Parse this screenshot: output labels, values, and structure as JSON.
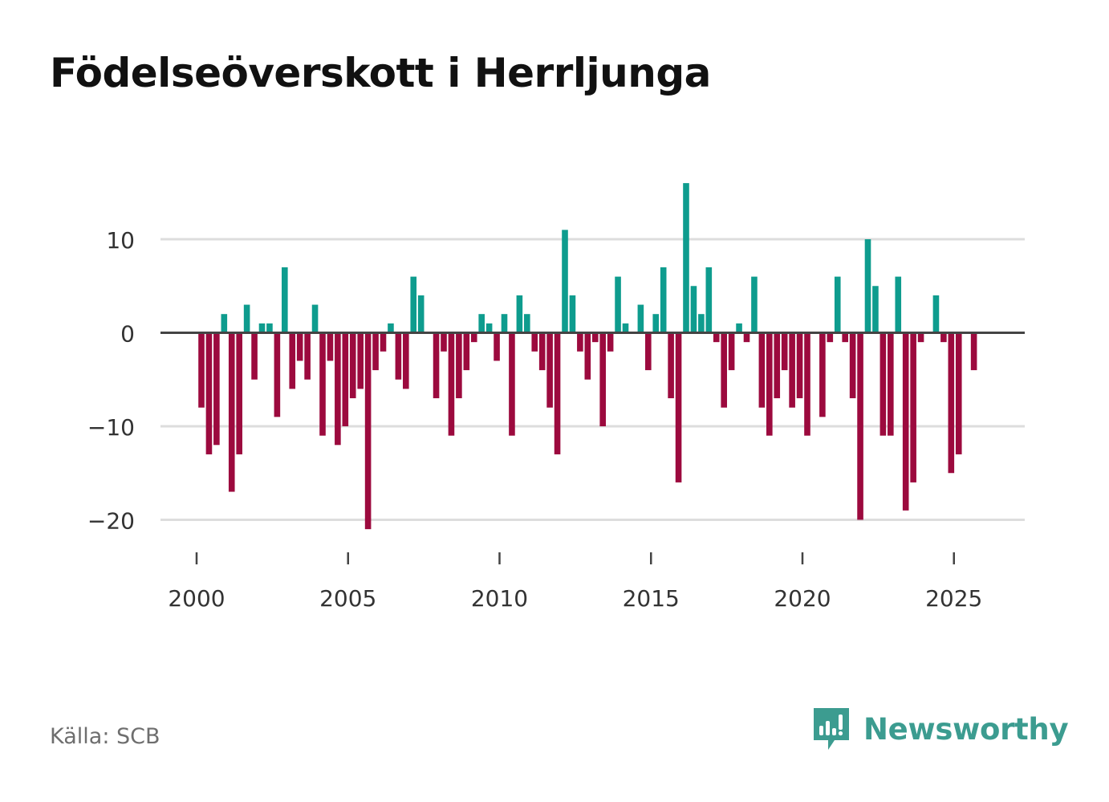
{
  "title": "Födelseöverskott i Herrljunga",
  "source": "Källa: SCB",
  "brand": "Newsworthy",
  "colors": {
    "positive": "#0e9c8e",
    "negative": "#9c0a3e",
    "grid": "#dddddd",
    "zero": "#444444",
    "brand": "#3c9c90"
  },
  "icons": {
    "brand_logo": "bar-chart-speech-bubble-icon"
  },
  "chart_data": {
    "type": "bar",
    "title": "Födelseöverskott i Herrljunga",
    "xlabel": "",
    "ylabel": "",
    "frequency": "quarterly",
    "x_ticks": [
      2000,
      2005,
      2010,
      2015,
      2020,
      2025
    ],
    "x_tick_labels": [
      "2000",
      "2005",
      "2010",
      "2015",
      "2020",
      "2025"
    ],
    "y_ticks": [
      10,
      0,
      -10,
      -20
    ],
    "y_tick_labels": [
      "10",
      "0",
      "−10",
      "−20"
    ],
    "ylim": [
      -24,
      17
    ],
    "xlim": [
      1999.3,
      2027.3
    ],
    "series": [
      {
        "name": "Födelseöverskott",
        "start_year": 2000,
        "values": [
          -8,
          -13,
          -12,
          2,
          -17,
          -13,
          3,
          -5,
          1,
          1,
          -9,
          7,
          -6,
          -3,
          -5,
          3,
          -11,
          -3,
          -12,
          -10,
          -7,
          -6,
          -21,
          -4,
          -2,
          1,
          -5,
          -6,
          6,
          4,
          0,
          -7,
          -2,
          -11,
          -7,
          -4,
          -1,
          2,
          1,
          -3,
          2,
          -11,
          4,
          2,
          -2,
          -4,
          -8,
          -13,
          11,
          4,
          -2,
          -5,
          -1,
          -10,
          -2,
          6,
          1,
          0,
          3,
          -4,
          2,
          7,
          -7,
          -16,
          16,
          5,
          2,
          7,
          -1,
          -8,
          -4,
          1,
          -1,
          6,
          -8,
          -11,
          -7,
          -4,
          -8,
          -7,
          -11,
          0,
          -9,
          -1,
          6,
          -1,
          -7,
          -20,
          10,
          5,
          -11,
          -11,
          6,
          -19,
          -16,
          -1,
          0,
          4,
          -1,
          -15,
          -13,
          0,
          -4
        ]
      }
    ]
  }
}
